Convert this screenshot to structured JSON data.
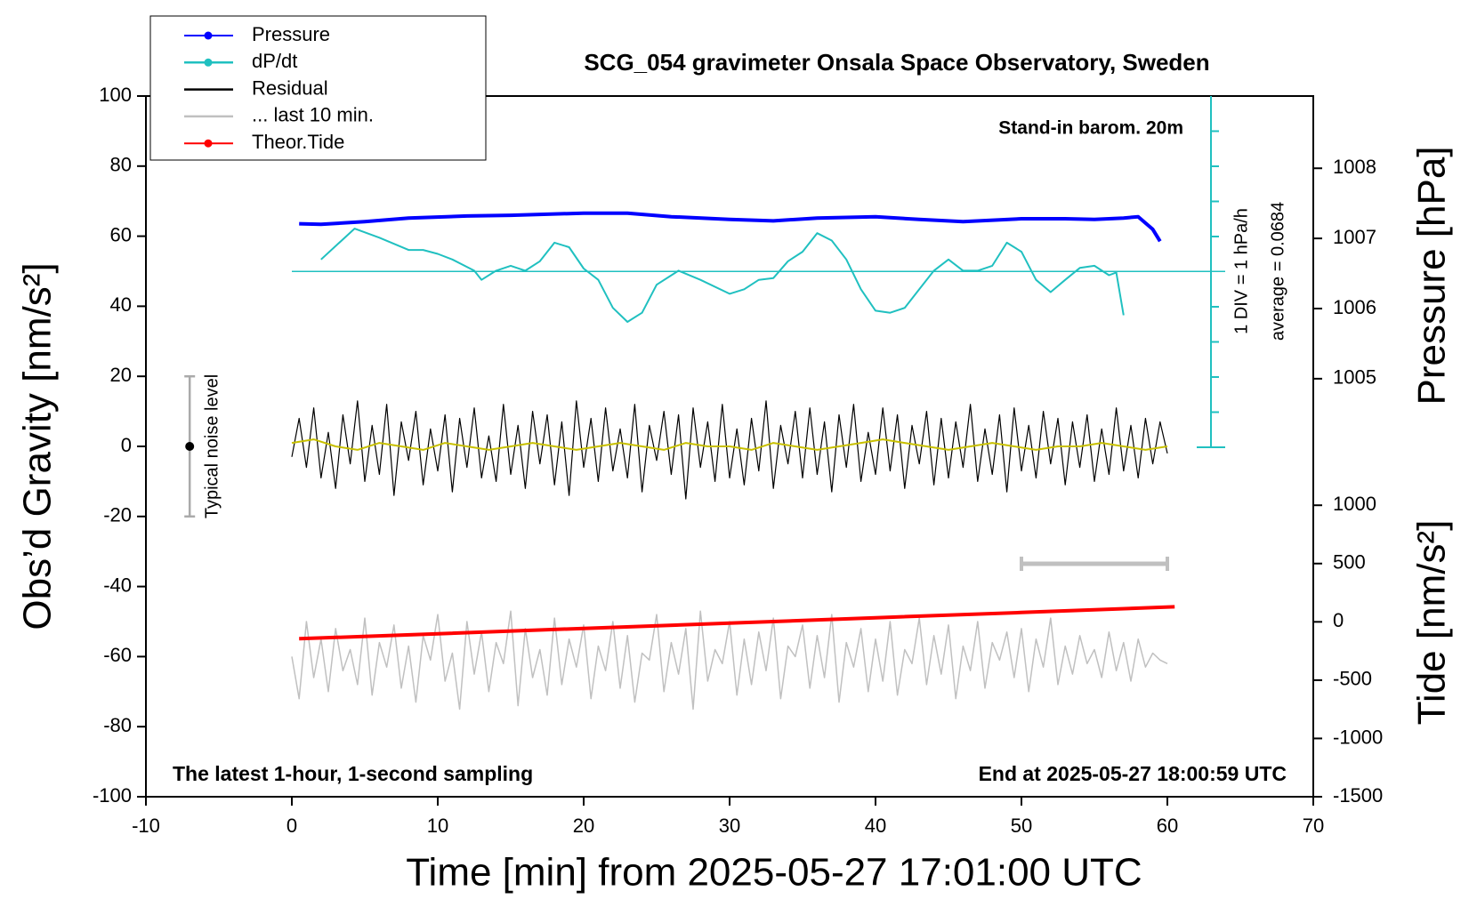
{
  "chart_data": {
    "type": "line",
    "title": "SCG_054 gravimeter Onsala Space Observatory, Sweden",
    "x_label": "Time [min] from 2025-05-27 17:01:00 UTC",
    "y_label": "Obs’d Gravity [nm/s²]",
    "y2_label": "Pressure [hPa]",
    "y3_label": "Tide [nm/s²]",
    "xlim": [
      -10,
      70
    ],
    "xticks": [
      -10,
      0,
      10,
      20,
      30,
      40,
      50,
      60,
      70
    ],
    "ylim": [
      -100,
      100
    ],
    "yticks": [
      -100,
      -80,
      -60,
      -40,
      -20,
      0,
      20,
      40,
      60,
      80,
      100
    ],
    "y2lim": [
      999.04,
      1009.03
    ],
    "y2ticks": [
      1005,
      1006,
      1007,
      1008
    ],
    "y3lim": [
      -1500,
      4510
    ],
    "y3ticks": [
      -1500,
      -1000,
      -500,
      0,
      500,
      1000
    ],
    "y4lim": [
      -14.91,
      5.07
    ],
    "legend": "upper left",
    "annotations": {
      "stand_in": "Stand-in barom. 20m",
      "latest": "The latest 1-hour, 1-second sampling",
      "end": "End at 2025-05-27 18:00:59 UTC",
      "div": "1 DIV = 1 hPa/h"
    },
    "average": {
      "value": 0.0684,
      "label": "average = 0.0684"
    },
    "noise_bar": {
      "x": -7,
      "y": 0,
      "error": 20,
      "label": "Typical noise level"
    },
    "window_bar": {
      "start": 50,
      "end": 60,
      "y": -33.5
    },
    "series": [
      {
        "name": "Pressure",
        "color": "#0000ff",
        "axis": "y2",
        "legend_marker": true,
        "width": 4,
        "x": [
          0.5,
          2,
          5,
          8,
          12,
          15,
          20,
          23,
          26,
          30,
          33,
          36,
          40,
          43,
          46,
          50,
          53,
          55,
          57,
          58,
          59,
          59.5
        ],
        "values": [
          1007.21,
          1007.2,
          1007.24,
          1007.29,
          1007.32,
          1007.33,
          1007.36,
          1007.36,
          1007.31,
          1007.27,
          1007.25,
          1007.29,
          1007.31,
          1007.27,
          1007.24,
          1007.28,
          1007.28,
          1007.27,
          1007.29,
          1007.31,
          1007.13,
          1006.96
        ]
      },
      {
        "name": "dP/dt",
        "color": "#20c0c0",
        "axis": "y4",
        "legend_marker": true,
        "width": 2,
        "x": [
          2,
          4.3,
          6,
          8,
          9,
          10,
          11,
          12.5,
          13,
          14,
          15,
          16,
          17,
          18,
          19,
          20,
          21,
          22,
          23,
          24,
          25,
          26.5,
          28,
          30,
          31,
          32,
          33,
          34,
          35,
          36,
          37,
          38,
          39,
          40,
          41,
          42,
          43,
          44,
          45,
          46,
          47,
          48,
          49,
          50,
          51,
          52,
          53,
          54,
          55,
          56,
          56.5,
          57
        ],
        "values": [
          0.41,
          1.29,
          1.03,
          0.68,
          0.68,
          0.57,
          0.41,
          0.09,
          -0.17,
          0.09,
          0.23,
          0.09,
          0.36,
          0.89,
          0.76,
          0.15,
          -0.17,
          -0.97,
          -1.37,
          -1.11,
          -0.31,
          0.09,
          -0.17,
          -0.57,
          -0.44,
          -0.17,
          -0.12,
          0.36,
          0.63,
          1.16,
          0.95,
          0.41,
          -0.44,
          -1.05,
          -1.11,
          -0.97,
          -0.44,
          0.09,
          0.41,
          0.09,
          0.09,
          0.23,
          0.89,
          0.63,
          -0.17,
          -0.52,
          -0.17,
          0.17,
          0.23,
          -0.04,
          0.04,
          -1.18
        ]
      },
      {
        "name": "Residual",
        "color": "#000000",
        "axis": "y",
        "legend_marker": false,
        "width": 1.2,
        "x": [
          0,
          0.5,
          1,
          1.5,
          2,
          2.5,
          3,
          3.5,
          4,
          4.5,
          5,
          5.5,
          6,
          6.5,
          7,
          7.5,
          8,
          8.5,
          9,
          9.5,
          10,
          10.5,
          11,
          11.5,
          12,
          12.5,
          13,
          13.5,
          14,
          14.5,
          15,
          15.5,
          16,
          16.5,
          17,
          17.5,
          18,
          18.5,
          19,
          19.5,
          20,
          20.5,
          21,
          21.5,
          22,
          22.5,
          23,
          23.5,
          24,
          24.5,
          25,
          25.5,
          26,
          26.5,
          27,
          27.5,
          28,
          28.5,
          29,
          29.5,
          30,
          30.5,
          31,
          31.5,
          32,
          32.5,
          33,
          33.5,
          34,
          34.5,
          35,
          35.5,
          36,
          36.5,
          37,
          37.5,
          38,
          38.5,
          39,
          39.5,
          40,
          40.5,
          41,
          41.5,
          42,
          42.5,
          43,
          43.5,
          44,
          44.5,
          45,
          45.5,
          46,
          46.5,
          47,
          47.5,
          48,
          48.5,
          49,
          49.5,
          50,
          50.5,
          51,
          51.5,
          52,
          52.5,
          53,
          53.5,
          54,
          54.5,
          55,
          55.5,
          56,
          56.5,
          57,
          57.5,
          58,
          58.5,
          59,
          59.5,
          60
        ],
        "values": [
          -3,
          8,
          -6,
          11,
          -9,
          4,
          -12,
          9,
          -5,
          13,
          -10,
          6,
          -8,
          12,
          -14,
          7,
          -4,
          10,
          -11,
          5,
          -7,
          9,
          -13,
          8,
          -6,
          11,
          -9,
          3,
          -10,
          12,
          -8,
          6,
          -12,
          10,
          -5,
          9,
          -11,
          7,
          -14,
          13,
          -6,
          8,
          -10,
          11,
          -7,
          5,
          -9,
          12,
          -13,
          6,
          -4,
          10,
          -8,
          9,
          -15,
          11,
          -6,
          7,
          -10,
          12,
          -9,
          5,
          -11,
          8,
          -7,
          13,
          -12,
          6,
          -5,
          10,
          -9,
          11,
          -8,
          7,
          -13,
          9,
          -6,
          12,
          -10,
          4,
          -8,
          11,
          -7,
          9,
          -12,
          6,
          -5,
          10,
          -11,
          8,
          -9,
          7,
          -6,
          12,
          -10,
          5,
          -8,
          9,
          -13,
          11,
          -7,
          6,
          -9,
          10,
          -5,
          8,
          -11,
          7,
          -6,
          9,
          -10,
          5,
          -8,
          11,
          -7,
          6,
          -9,
          8,
          -5,
          7,
          -2
        ]
      },
      {
        "name": "... last 10 min.",
        "color": "#c0c0c0",
        "axis": "y",
        "legend_marker": false,
        "width": 1.5,
        "x": [
          0,
          0.5,
          1,
          1.5,
          2,
          2.5,
          3,
          3.5,
          4,
          4.5,
          5,
          5.5,
          6,
          6.5,
          7,
          7.5,
          8,
          8.5,
          9,
          9.5,
          10,
          10.5,
          11,
          11.5,
          12,
          12.5,
          13,
          13.5,
          14,
          14.5,
          15,
          15.5,
          16,
          16.5,
          17,
          17.5,
          18,
          18.5,
          19,
          19.5,
          20,
          20.5,
          21,
          21.5,
          22,
          22.5,
          23,
          23.5,
          24,
          24.5,
          25,
          25.5,
          26,
          26.5,
          27,
          27.5,
          28,
          28.5,
          29,
          29.5,
          30,
          30.5,
          31,
          31.5,
          32,
          32.5,
          33,
          33.5,
          34,
          34.5,
          35,
          35.5,
          36,
          36.5,
          37,
          37.5,
          38,
          38.5,
          39,
          39.5,
          40,
          40.5,
          41,
          41.5,
          42,
          42.5,
          43,
          43.5,
          44,
          44.5,
          45,
          45.5,
          46,
          46.5,
          47,
          47.5,
          48,
          48.5,
          49,
          49.5,
          50,
          50.5,
          51,
          51.5,
          52,
          52.5,
          53,
          53.5,
          54,
          54.5,
          55,
          55.5,
          56,
          56.5,
          57,
          57.5,
          58,
          58.5,
          59,
          59.5,
          60
        ],
        "values": [
          -60,
          -72,
          -50,
          -66,
          -55,
          -70,
          -52,
          -64,
          -58,
          -68,
          -49,
          -71,
          -56,
          -63,
          -51,
          -69,
          -57,
          -73,
          -54,
          -61,
          -48,
          -67,
          -59,
          -75,
          -50,
          -65,
          -53,
          -70,
          -56,
          -62,
          -47,
          -74,
          -52,
          -66,
          -58,
          -71,
          -49,
          -68,
          -55,
          -63,
          -51,
          -72,
          -57,
          -64,
          -50,
          -69,
          -54,
          -73,
          -59,
          -61,
          -48,
          -70,
          -56,
          -65,
          -52,
          -75,
          -47,
          -67,
          -58,
          -62,
          -50,
          -71,
          -55,
          -68,
          -53,
          -64,
          -49,
          -72,
          -57,
          -60,
          -51,
          -69,
          -54,
          -66,
          -48,
          -73,
          -56,
          -63,
          -52,
          -70,
          -55,
          -67,
          -50,
          -71,
          -58,
          -62,
          -49,
          -68,
          -54,
          -65,
          -51,
          -72,
          -57,
          -64,
          -50,
          -69,
          -56,
          -61,
          -53,
          -66,
          -52,
          -70,
          -55,
          -63,
          -49,
          -68,
          -57,
          -65,
          -54,
          -62,
          -58,
          -66,
          -53,
          -64,
          -56,
          -67,
          -55,
          -63,
          -59,
          -61,
          -62
        ]
      },
      {
        "name": "Theor.Tide",
        "color": "#ff0000",
        "axis": "y3",
        "legend_marker": true,
        "width": 4,
        "x": [
          0.5,
          10,
          20,
          30,
          40,
          50,
          60.5
        ],
        "values": [
          -145,
          -102,
          -56,
          -11,
          35,
          80,
          129
        ]
      }
    ],
    "residual_smoothed": {
      "color": "#c8c000",
      "x": [
        0,
        1.5,
        3,
        4.5,
        6,
        7.5,
        9,
        10.5,
        12,
        13.5,
        15,
        16.5,
        18,
        19.5,
        21,
        22.5,
        24,
        25.5,
        27,
        28.5,
        30,
        31.5,
        33,
        34.5,
        36,
        37.5,
        39,
        40.5,
        42,
        43.5,
        45,
        46.5,
        48,
        49.5,
        51,
        52.5,
        54,
        55.5,
        57,
        58.5,
        60
      ],
      "values": [
        1,
        2,
        0,
        -1,
        1,
        0,
        -1,
        1,
        0,
        -1,
        0,
        1,
        0,
        -1,
        0,
        1,
        0,
        -1,
        1,
        0,
        0,
        -1,
        1,
        0,
        -1,
        0,
        1,
        2,
        1,
        0,
        -1,
        0,
        1,
        0,
        -1,
        0,
        0,
        1,
        0,
        -1,
        0
      ]
    }
  }
}
